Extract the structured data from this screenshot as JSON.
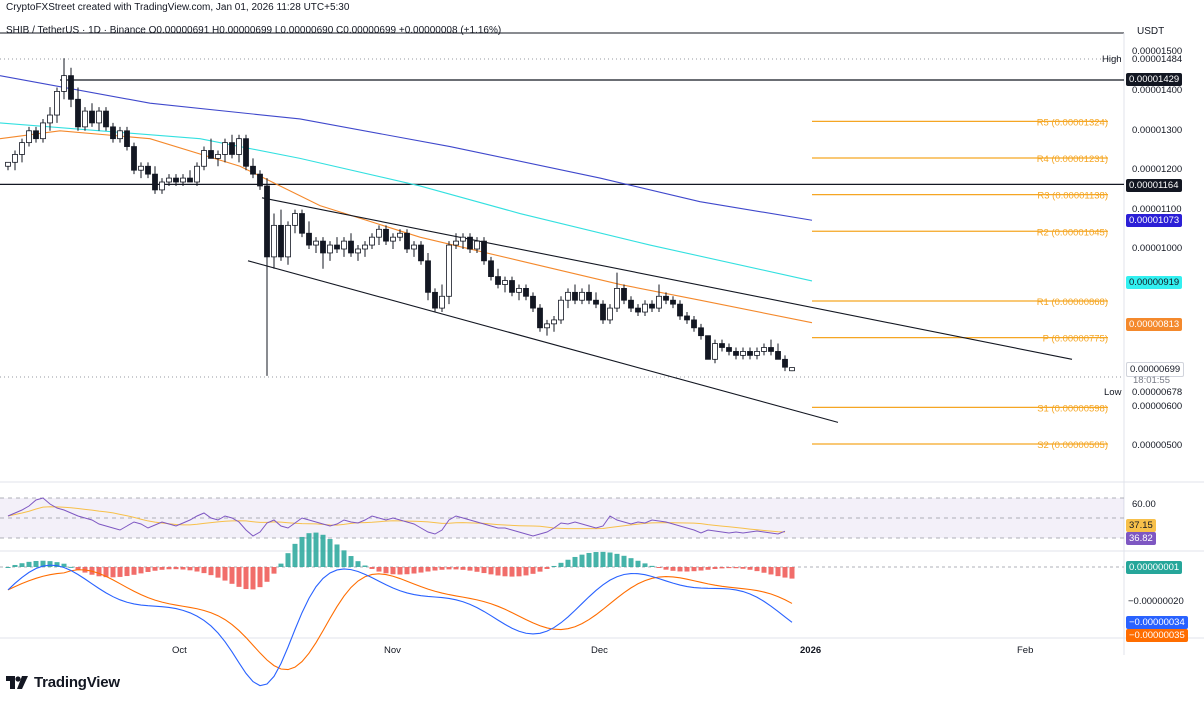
{
  "header": {
    "created_line": "CryptoFXStreet created with TradingView.com, Jan 01, 2026 11:28 UTC+5:30",
    "symbol_line": "SHIB / TetherUS · 1D · Binance  O0.00000691 H0.00000699 L0.00000690 C0.00000699 +0.00000008 (+1.16%)",
    "currency": "USDT"
  },
  "price_axis": {
    "ticks": [
      "0.00001500",
      "0.00001400",
      "0.00001300",
      "0.00001200",
      "0.00001100",
      "0.00001000",
      "0.00000600",
      "0.00000500"
    ],
    "high_label": "High",
    "high_value": "0.00001484",
    "low_label": "Low",
    "low_value": "0.00000678",
    "tags": {
      "resistance_1429": "0.00001429",
      "resistance_1164": "0.00001164",
      "ma_blue": "0.00001073",
      "ma_cyan": "0.00000919",
      "ma_orange": "0.00000813",
      "last_price": "0.00000699",
      "countdown": "18:01:55"
    }
  },
  "pivots": [
    {
      "label": "R5 (0.00001324)",
      "value": 1.324e-05
    },
    {
      "label": "R4 (0.00001231)",
      "value": 1.231e-05
    },
    {
      "label": "R3 (0.00001138)",
      "value": 1.138e-05
    },
    {
      "label": "R2 (0.00001045)",
      "value": 1.045e-05
    },
    {
      "label": "R1 (0.00000868)",
      "value": 8.68e-06
    },
    {
      "label": "P (0.00000775)",
      "value": 7.75e-06
    },
    {
      "label": "S1 (0.00000598)",
      "value": 5.98e-06
    },
    {
      "label": "S2 (0.00000505)",
      "value": 5.05e-06
    }
  ],
  "rsi_panel": {
    "level_label": "60.00",
    "signal_value": "37.15",
    "rsi_value": "36.82"
  },
  "macd_panel": {
    "hist_value": "0.00000001",
    "tick_label": "−0.00000020",
    "macd_value": "−0.00000034",
    "signal_value": "−0.00000035"
  },
  "time_axis": [
    "Oct",
    "Nov",
    "Dec",
    "2026",
    "Feb"
  ],
  "branding": "TradingView",
  "colors": {
    "up": "#ffffff",
    "down": "#131722",
    "pivot": "#f5a623",
    "ma_blue": "#3f48cc",
    "ma_cyan": "#33e0e0",
    "ma_orange": "#f4892c",
    "rsi": "#7e57c2",
    "rsi_signal": "#f7c04a",
    "hist_up": "#26a69a",
    "hist_down": "#ef5350",
    "macd": "#2962ff",
    "macd_signal": "#ff6d00"
  },
  "chart_data": {
    "type": "candlestick",
    "title": "SHIB / TetherUS · 1D · Binance",
    "ylim": [
      4.5e-06,
      1.52e-05
    ],
    "x_range": [
      "2025-08-28",
      "2026-02-20"
    ],
    "candles_ohlc": [
      [
        1.21e-05,
        1.22e-05,
        1.2e-05,
        1.22e-05
      ],
      [
        1.22e-05,
        1.25e-05,
        1.2e-05,
        1.24e-05
      ],
      [
        1.24e-05,
        1.28e-05,
        1.22e-05,
        1.27e-05
      ],
      [
        1.27e-05,
        1.31e-05,
        1.26e-05,
        1.3e-05
      ],
      [
        1.3e-05,
        1.31e-05,
        1.27e-05,
        1.28e-05
      ],
      [
        1.28e-05,
        1.33e-05,
        1.27e-05,
        1.32e-05
      ],
      [
        1.32e-05,
        1.36e-05,
        1.3e-05,
        1.34e-05
      ],
      [
        1.34e-05,
        1.41e-05,
        1.32e-05,
        1.4e-05
      ],
      [
        1.4e-05,
        1.484e-05,
        1.38e-05,
        1.44e-05
      ],
      [
        1.44e-05,
        1.46e-05,
        1.36e-05,
        1.38e-05
      ],
      [
        1.38e-05,
        1.41e-05,
        1.3e-05,
        1.31e-05
      ],
      [
        1.31e-05,
        1.36e-05,
        1.3e-05,
        1.35e-05
      ],
      [
        1.35e-05,
        1.37e-05,
        1.31e-05,
        1.32e-05
      ],
      [
        1.32e-05,
        1.36e-05,
        1.3e-05,
        1.35e-05
      ],
      [
        1.35e-05,
        1.36e-05,
        1.3e-05,
        1.31e-05
      ],
      [
        1.31e-05,
        1.32e-05,
        1.27e-05,
        1.28e-05
      ],
      [
        1.28e-05,
        1.31e-05,
        1.27e-05,
        1.3e-05
      ],
      [
        1.3e-05,
        1.31e-05,
        1.25e-05,
        1.26e-05
      ],
      [
        1.26e-05,
        1.27e-05,
        1.19e-05,
        1.2e-05
      ],
      [
        1.2e-05,
        1.22e-05,
        1.18e-05,
        1.21e-05
      ],
      [
        1.21e-05,
        1.22e-05,
        1.18e-05,
        1.19e-05
      ],
      [
        1.19e-05,
        1.21e-05,
        1.14e-05,
        1.15e-05
      ],
      [
        1.15e-05,
        1.18e-05,
        1.14e-05,
        1.17e-05
      ],
      [
        1.17e-05,
        1.19e-05,
        1.16e-05,
        1.18e-05
      ],
      [
        1.18e-05,
        1.19e-05,
        1.16e-05,
        1.17e-05
      ],
      [
        1.17e-05,
        1.19e-05,
        1.16e-05,
        1.18e-05
      ],
      [
        1.18e-05,
        1.2e-05,
        1.17e-05,
        1.17e-05
      ],
      [
        1.17e-05,
        1.22e-05,
        1.16e-05,
        1.21e-05
      ],
      [
        1.21e-05,
        1.26e-05,
        1.2e-05,
        1.25e-05
      ],
      [
        1.25e-05,
        1.28e-05,
        1.23e-05,
        1.23e-05
      ],
      [
        1.23e-05,
        1.25e-05,
        1.21e-05,
        1.24e-05
      ],
      [
        1.24e-05,
        1.28e-05,
        1.22e-05,
        1.27e-05
      ],
      [
        1.27e-05,
        1.29e-05,
        1.23e-05,
        1.24e-05
      ],
      [
        1.24e-05,
        1.29e-05,
        1.22e-05,
        1.28e-05
      ],
      [
        1.28e-05,
        1.29e-05,
        1.2e-05,
        1.21e-05
      ],
      [
        1.21e-05,
        1.23e-05,
        1.18e-05,
        1.19e-05
      ],
      [
        1.19e-05,
        1.2e-05,
        1.15e-05,
        1.16e-05
      ],
      [
        1.16e-05,
        1.18e-05,
        6.78e-06,
        9.8e-06
      ],
      [
        9.8e-06,
        1.09e-05,
        9.5e-06,
        1.06e-05
      ],
      [
        1.06e-05,
        1.1e-05,
        9.7e-06,
        9.8e-06
      ],
      [
        9.8e-06,
        1.07e-05,
        9.6e-06,
        1.06e-05
      ],
      [
        1.06e-05,
        1.1e-05,
        1.04e-05,
        1.09e-05
      ],
      [
        1.09e-05,
        1.1e-05,
        1.03e-05,
        1.04e-05
      ],
      [
        1.04e-05,
        1.07e-05,
        1e-05,
        1.01e-05
      ],
      [
        1.01e-05,
        1.03e-05,
        9.9e-06,
        1.02e-05
      ],
      [
        1.02e-05,
        1.03e-05,
        9.5e-06,
        9.9e-06
      ],
      [
        9.9e-06,
        1.02e-05,
        9.7e-06,
        1.01e-05
      ],
      [
        1.01e-05,
        1.03e-05,
        9.9e-06,
        1e-05
      ],
      [
        1e-05,
        1.03e-05,
        9.8e-06,
        1.02e-05
      ],
      [
        1.02e-05,
        1.04e-05,
        9.8e-06,
        9.9e-06
      ],
      [
        9.9e-06,
        1.01e-05,
        9.7e-06,
        1e-05
      ],
      [
        1e-05,
        1.02e-05,
        9.8e-06,
        1.01e-05
      ],
      [
        1.01e-05,
        1.04e-05,
        1e-05,
        1.03e-05
      ],
      [
        1.03e-05,
        1.06e-05,
        1.01e-05,
        1.05e-05
      ],
      [
        1.05e-05,
        1.06e-05,
        1.01e-05,
        1.02e-05
      ],
      [
        1.02e-05,
        1.04e-05,
        1e-05,
        1.03e-05
      ],
      [
        1.03e-05,
        1.05e-05,
        1.02e-05,
        1.04e-05
      ],
      [
        1.04e-05,
        1.05e-05,
        9.9e-06,
        1e-05
      ],
      [
        1e-05,
        1.02e-05,
        9.8e-06,
        1.01e-05
      ],
      [
        1.01e-05,
        1.02e-05,
        9.6e-06,
        9.7e-06
      ],
      [
        9.7e-06,
        9.9e-06,
        8.7e-06,
        8.9e-06
      ],
      [
        8.9e-06,
        9e-06,
        8.4e-06,
        8.5e-06
      ],
      [
        8.5e-06,
        9.1e-06,
        8.4e-06,
        8.8e-06
      ],
      [
        8.8e-06,
        1.02e-05,
        8.6e-06,
        1.01e-05
      ],
      [
        1.01e-05,
        1.04e-05,
        1e-05,
        1.02e-05
      ],
      [
        1.02e-05,
        1.04e-05,
        1e-05,
        1.03e-05
      ],
      [
        1.03e-05,
        1.04e-05,
        9.9e-06,
        1e-05
      ],
      [
        1e-05,
        1.03e-05,
        9.9e-06,
        1.02e-05
      ],
      [
        1.02e-05,
        1.03e-05,
        9.6e-06,
        9.7e-06
      ],
      [
        9.7e-06,
        9.8e-06,
        9.2e-06,
        9.3e-06
      ],
      [
        9.3e-06,
        9.5e-06,
        9e-06,
        9.1e-06
      ],
      [
        9.1e-06,
        9.3e-06,
        8.9e-06,
        9.2e-06
      ],
      [
        9.2e-06,
        9.3e-06,
        8.8e-06,
        8.9e-06
      ],
      [
        8.9e-06,
        9.1e-06,
        8.7e-06,
        9e-06
      ],
      [
        9e-06,
        9.1e-06,
        8.7e-06,
        8.8e-06
      ],
      [
        8.8e-06,
        8.9e-06,
        8.4e-06,
        8.5e-06
      ],
      [
        8.5e-06,
        8.6e-06,
        7.9e-06,
        8e-06
      ],
      [
        8e-06,
        8.2e-06,
        7.8e-06,
        8.1e-06
      ],
      [
        8.1e-06,
        8.3e-06,
        7.9e-06,
        8.2e-06
      ],
      [
        8.2e-06,
        8.8e-06,
        8.1e-06,
        8.7e-06
      ],
      [
        8.7e-06,
        9e-06,
        8.5e-06,
        8.9e-06
      ],
      [
        8.9e-06,
        9.1e-06,
        8.6e-06,
        8.7e-06
      ],
      [
        8.7e-06,
        9e-06,
        8.6e-06,
        8.9e-06
      ],
      [
        8.9e-06,
        9.1e-06,
        8.6e-06,
        8.7e-06
      ],
      [
        8.7e-06,
        8.9e-06,
        8.5e-06,
        8.6e-06
      ],
      [
        8.6e-06,
        8.7e-06,
        8.1e-06,
        8.2e-06
      ],
      [
        8.2e-06,
        8.6e-06,
        8.1e-06,
        8.5e-06
      ],
      [
        8.5e-06,
        9.4e-06,
        8.4e-06,
        9e-06
      ],
      [
        9e-06,
        9.1e-06,
        8.6e-06,
        8.7e-06
      ],
      [
        8.7e-06,
        8.8e-06,
        8.4e-06,
        8.5e-06
      ],
      [
        8.5e-06,
        8.6e-06,
        8.3e-06,
        8.4e-06
      ],
      [
        8.4e-06,
        8.7e-06,
        8.3e-06,
        8.6e-06
      ],
      [
        8.6e-06,
        8.7e-06,
        8.4e-06,
        8.5e-06
      ],
      [
        8.5e-06,
        9.1e-06,
        8.4e-06,
        8.8e-06
      ],
      [
        8.8e-06,
        8.9e-06,
        8.6e-06,
        8.7e-06
      ],
      [
        8.7e-06,
        8.8e-06,
        8.5e-06,
        8.6e-06
      ],
      [
        8.6e-06,
        8.7e-06,
        8.2e-06,
        8.3e-06
      ],
      [
        8.3e-06,
        8.4e-06,
        8.1e-06,
        8.2e-06
      ],
      [
        8.2e-06,
        8.3e-06,
        7.9e-06,
        8e-06
      ],
      [
        8e-06,
        8.1e-06,
        7.7e-06,
        7.8e-06
      ],
      [
        7.8e-06,
        7.8e-06,
        7.2e-06,
        7.2e-06
      ],
      [
        7.2e-06,
        7.7e-06,
        7.1e-06,
        7.6e-06
      ],
      [
        7.6e-06,
        7.7e-06,
        7.4e-06,
        7.5e-06
      ],
      [
        7.5e-06,
        7.6e-06,
        7.3e-06,
        7.4e-06
      ],
      [
        7.4e-06,
        7.5e-06,
        7.2e-06,
        7.3e-06
      ],
      [
        7.3e-06,
        7.5e-06,
        7.2e-06,
        7.4e-06
      ],
      [
        7.4e-06,
        7.5e-06,
        7.2e-06,
        7.3e-06
      ],
      [
        7.3e-06,
        7.5e-06,
        7.2e-06,
        7.4e-06
      ],
      [
        7.4e-06,
        7.6e-06,
        7.3e-06,
        7.5e-06
      ],
      [
        7.5e-06,
        7.7e-06,
        7.3e-06,
        7.4e-06
      ],
      [
        7.4e-06,
        7.6e-06,
        7.2e-06,
        7.2e-06
      ],
      [
        7.2e-06,
        7.3e-06,
        6.9e-06,
        7e-06
      ],
      [
        6.91e-06,
        6.99e-06,
        6.9e-06,
        6.99e-06
      ]
    ],
    "pivot_levels": {
      "R5": 1.324e-05,
      "R4": 1.231e-05,
      "R3": 1.138e-05,
      "R2": 1.045e-05,
      "R1": 8.68e-06,
      "P": 7.75e-06,
      "S1": 5.98e-06,
      "S2": 5.05e-06
    },
    "horizontal_lines": [
      1.429e-05,
      1.164e-05
    ],
    "moving_averages": [
      {
        "color": "#3f48cc",
        "last": 1.073e-05
      },
      {
        "color": "#33e0e0",
        "last": 9.19e-06
      },
      {
        "color": "#f4892c",
        "last": 8.13e-06
      }
    ],
    "descending_channel": {
      "upper": [
        [
          "2025-10-09",
          1.13e-05
        ],
        [
          "2026-01-14",
          7.2e-06
        ]
      ],
      "lower": [
        [
          "2025-10-06",
          9.7e-06
        ],
        [
          "2026-01-01",
          5.6e-06
        ]
      ]
    },
    "rsi": {
      "last": 36.82,
      "signal_last": 37.15,
      "levels": [
        30,
        50,
        70
      ],
      "ylim": [
        20,
        80
      ]
    },
    "macd": {
      "last": -3.4e-07,
      "signal_last": -3.5e-07,
      "hist_last": 1e-08
    }
  }
}
